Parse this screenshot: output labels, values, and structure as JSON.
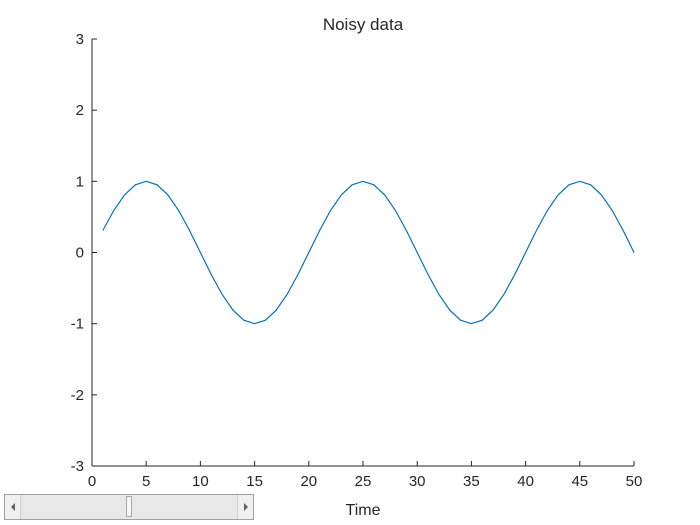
{
  "chart_data": {
    "type": "line",
    "title": "Noisy data",
    "xlabel": "Time",
    "ylabel": "",
    "xlim": [
      0,
      50
    ],
    "ylim": [
      -3,
      3
    ],
    "xticks": [
      0,
      5,
      10,
      15,
      20,
      25,
      30,
      35,
      40,
      45,
      50
    ],
    "yticks": [
      -3,
      -2,
      -1,
      0,
      1,
      2,
      3
    ],
    "grid": false,
    "line_color": "#0072bd",
    "series": [
      {
        "x": [
          1,
          2,
          3,
          4,
          5,
          6,
          7,
          8,
          9,
          10,
          11,
          12,
          13,
          14,
          15,
          16,
          17,
          18,
          19,
          20,
          21,
          22,
          23,
          24,
          25,
          26,
          27,
          28,
          29,
          30,
          31,
          32,
          33,
          34,
          35,
          36,
          37,
          38,
          39,
          40,
          41,
          42,
          43,
          44,
          45,
          46,
          47,
          48,
          49,
          50
        ],
        "y": [
          0.309,
          0.588,
          0.809,
          0.951,
          1.0,
          0.951,
          0.809,
          0.588,
          0.309,
          0.0,
          -0.309,
          -0.588,
          -0.809,
          -0.951,
          -1.0,
          -0.951,
          -0.809,
          -0.588,
          -0.309,
          0.0,
          0.309,
          0.588,
          0.809,
          0.951,
          1.0,
          0.951,
          0.809,
          0.588,
          0.309,
          0.0,
          -0.309,
          -0.588,
          -0.809,
          -0.951,
          -1.0,
          -0.951,
          -0.809,
          -0.588,
          -0.309,
          0.0,
          0.309,
          0.588,
          0.809,
          0.951,
          1.0,
          0.951,
          0.809,
          0.588,
          0.309,
          0.0
        ]
      }
    ]
  },
  "scrollbar": {
    "left_arrow": "left-arrow-icon",
    "right_arrow": "right-arrow-icon",
    "position": 0.5
  }
}
